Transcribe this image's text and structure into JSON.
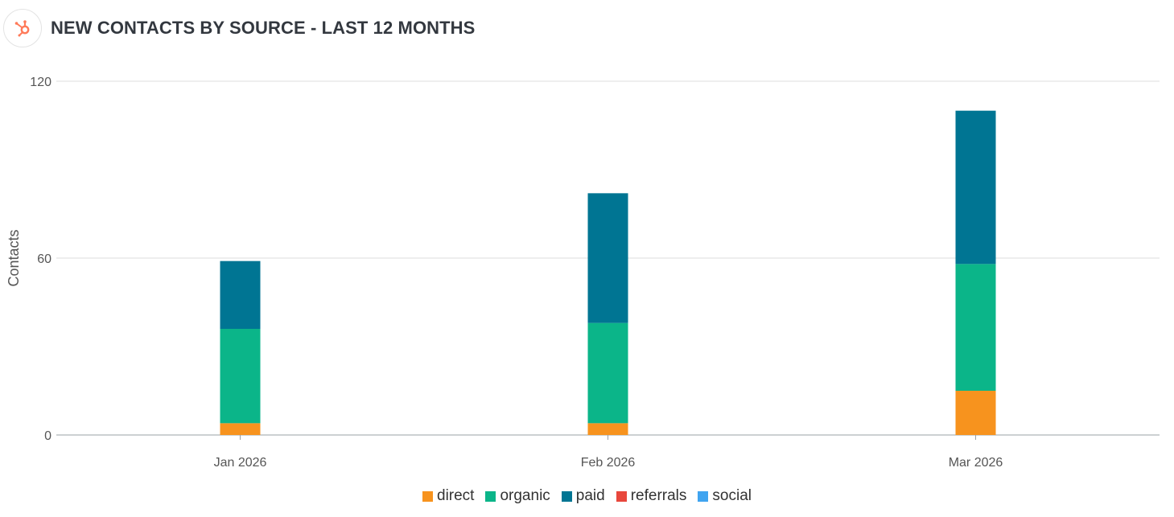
{
  "header": {
    "title": "NEW CONTACTS BY SOURCE - LAST 12 MONTHS",
    "logo_icon": "hubspot-sprocket-icon",
    "logo_color": "#ff7a59"
  },
  "chart_data": {
    "type": "bar",
    "stacked": true,
    "title": "NEW CONTACTS BY SOURCE - LAST 12 MONTHS",
    "xlabel": "",
    "ylabel": "Contacts",
    "ylim": [
      0,
      120
    ],
    "yticks": [
      0,
      60,
      120
    ],
    "grid": true,
    "legend_position": "bottom",
    "categories": [
      "Jan 2026",
      "Feb 2026",
      "Mar 2026"
    ],
    "series": [
      {
        "name": "direct",
        "color": "#f7931e",
        "values": [
          4,
          4,
          15
        ]
      },
      {
        "name": "organic",
        "color": "#0bb589",
        "values": [
          32,
          34,
          43
        ]
      },
      {
        "name": "paid",
        "color": "#007593",
        "values": [
          23,
          44,
          52
        ]
      },
      {
        "name": "referrals",
        "color": "#e8473c",
        "values": [
          0,
          0,
          0
        ]
      },
      {
        "name": "social",
        "color": "#40a4f0",
        "values": [
          0,
          0,
          0
        ]
      }
    ]
  }
}
